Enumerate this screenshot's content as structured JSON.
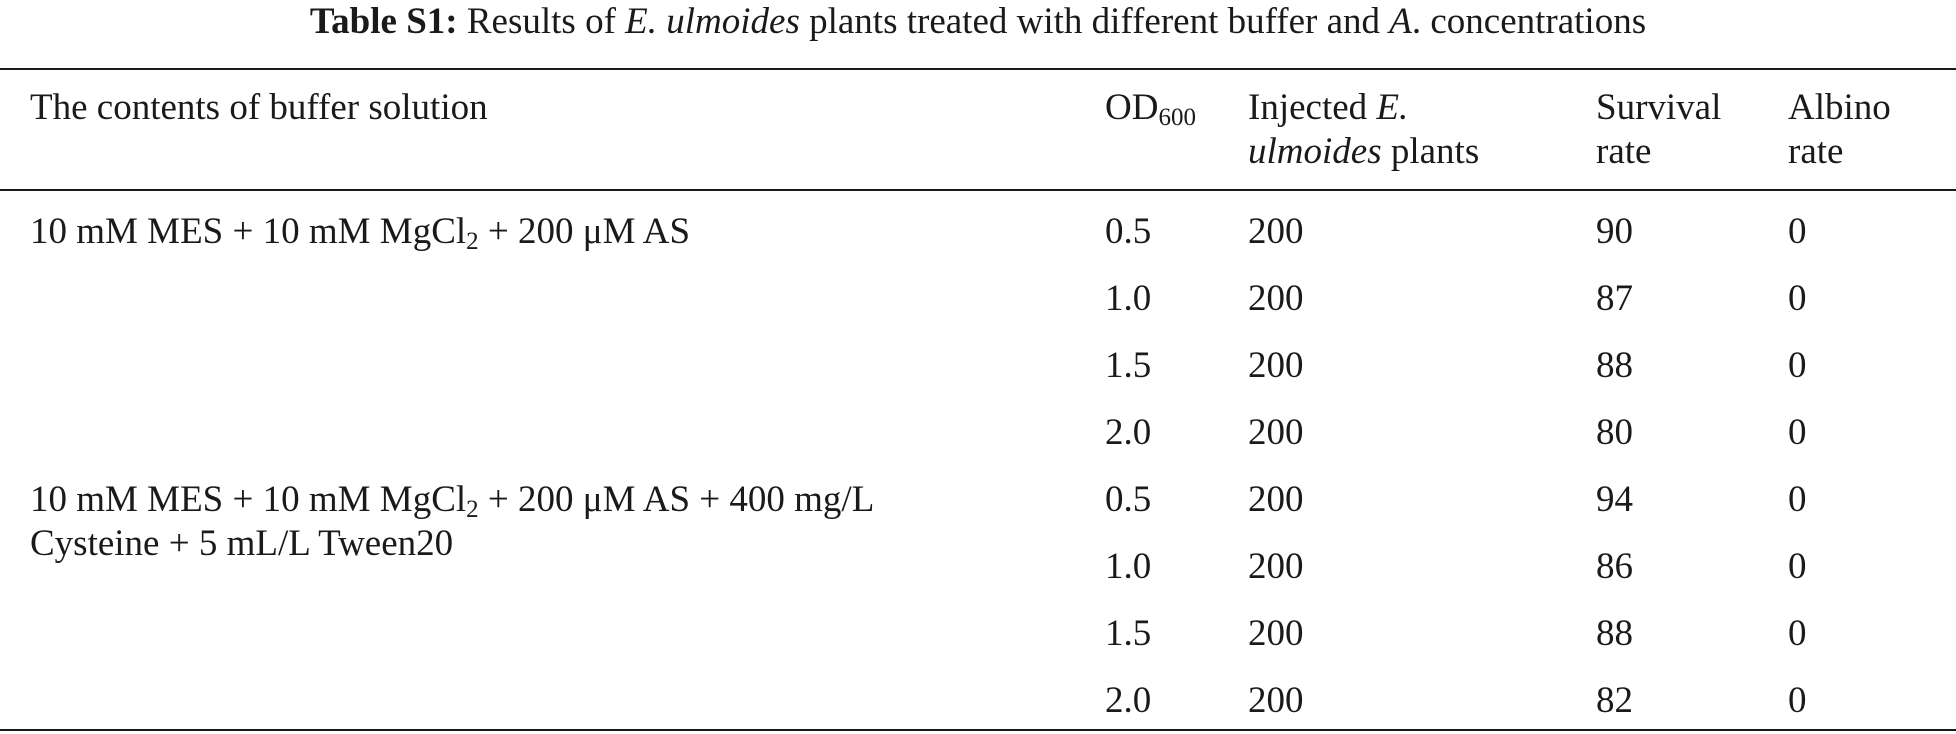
{
  "caption": {
    "label": "Table S1:",
    "text_1": " Results of ",
    "species_italic": "E. ulmoides",
    "text_2": " plants treated with different buffer and ",
    "agro_italic": "A",
    "text_3": ". concentrations"
  },
  "headers": {
    "buffer": "The contents of buffer solution",
    "od_main": "OD",
    "od_sub": "600",
    "injected_line1_text": "Injected ",
    "injected_line1_italic": "E.",
    "injected_line2_italic": "ulmoides",
    "injected_line2_text": " plants",
    "survival_line1": "Survival",
    "survival_line2": "rate",
    "albino_line1": "Albino",
    "albino_line2": "rate"
  },
  "groups": [
    {
      "buffer_a": "10 mM MES + 10 mM MgCl",
      "buffer_sub": "2",
      "buffer_b": " + 200 μM AS",
      "buffer_line2": "",
      "rows": [
        {
          "od": "0.5",
          "injected": "200",
          "survival": "90",
          "albino": "0"
        },
        {
          "od": "1.0",
          "injected": "200",
          "survival": "87",
          "albino": "0"
        },
        {
          "od": "1.5",
          "injected": "200",
          "survival": "88",
          "albino": "0"
        },
        {
          "od": "2.0",
          "injected": "200",
          "survival": "80",
          "albino": "0"
        }
      ]
    },
    {
      "buffer_a": "10 mM MES + 10 mM MgCl",
      "buffer_sub": "2",
      "buffer_b": " + 200 μM AS + 400 mg/L",
      "buffer_line2": "Cysteine + 5 mL/L Tween20",
      "rows": [
        {
          "od": "0.5",
          "injected": "200",
          "survival": "94",
          "albino": "0"
        },
        {
          "od": "1.0",
          "injected": "200",
          "survival": "86",
          "albino": "0"
        },
        {
          "od": "1.5",
          "injected": "200",
          "survival": "88",
          "albino": "0"
        },
        {
          "od": "2.0",
          "injected": "200",
          "survival": "82",
          "albino": "0"
        }
      ]
    }
  ]
}
